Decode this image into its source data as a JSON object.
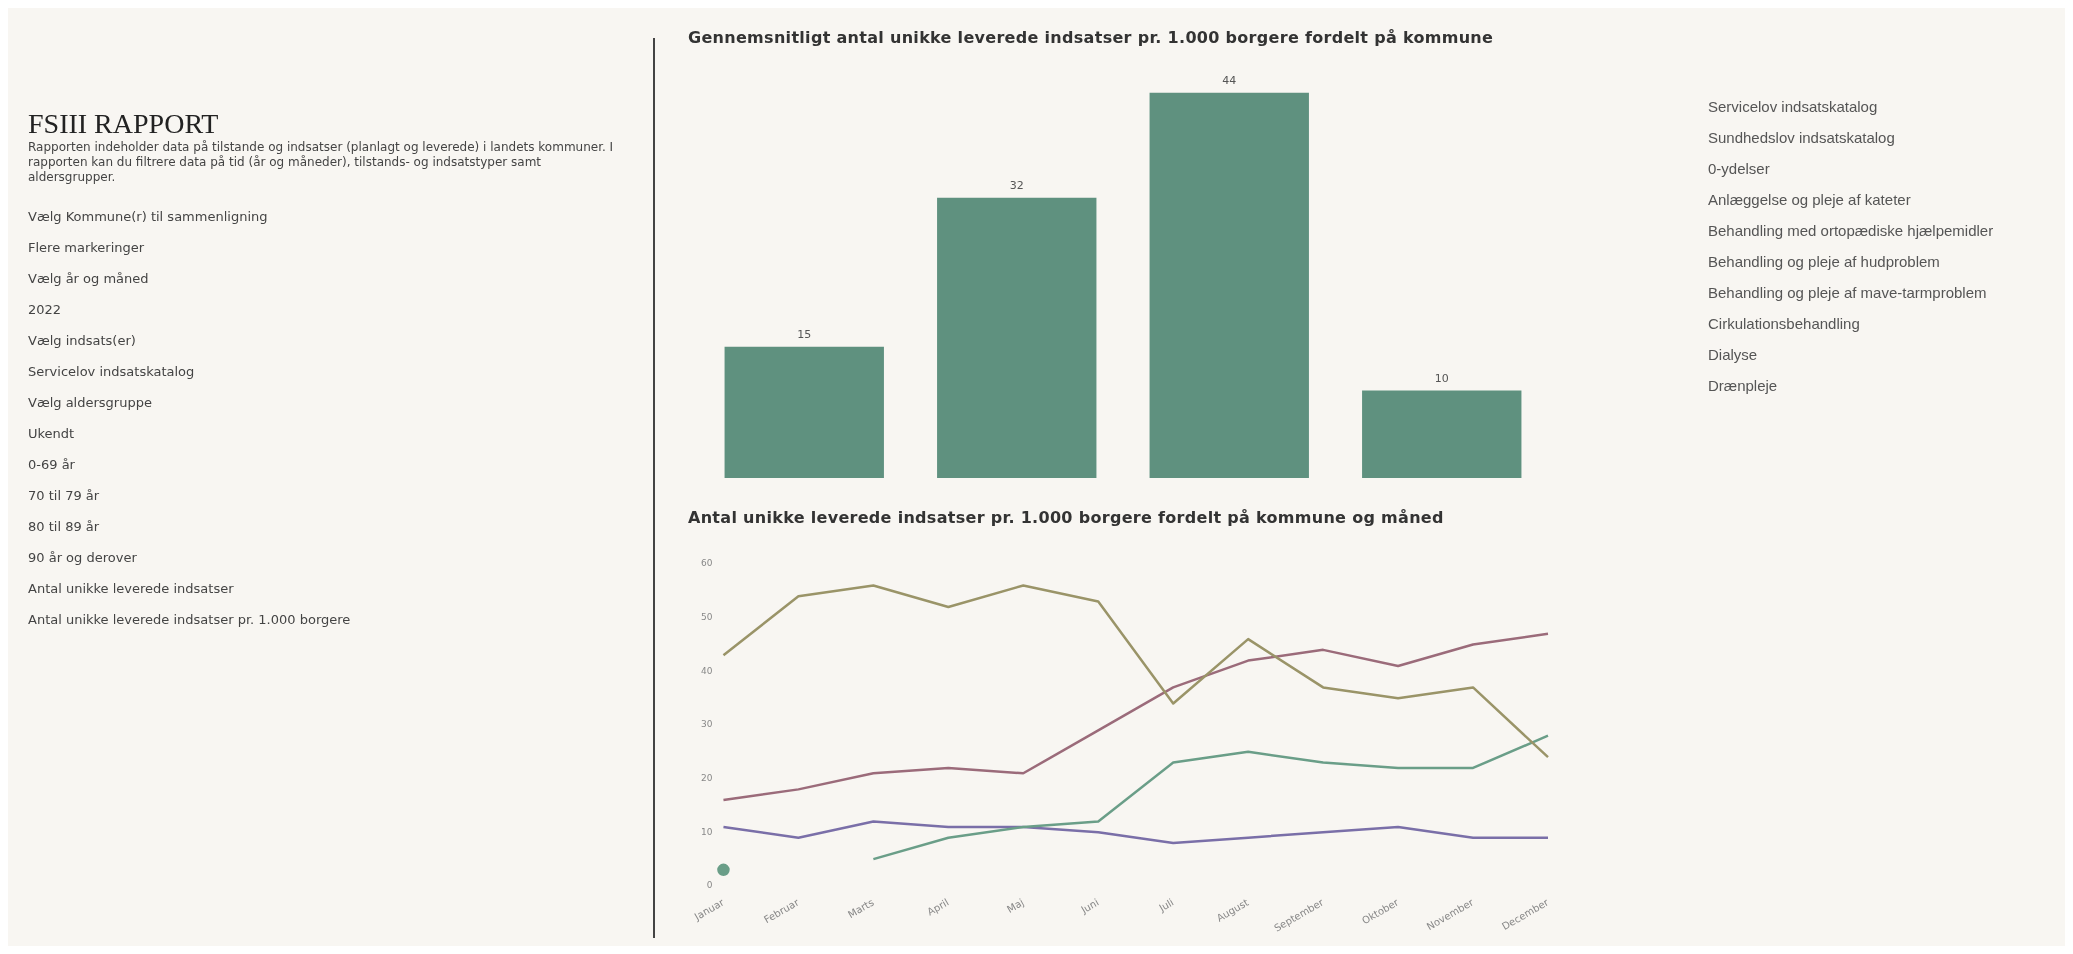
{
  "chart_data": [
    {
      "type": "other",
      "title": "FSIII RAPPORT",
      "subtitle": "Rapporten indeholder data på tilstande og indsatser (planlagt og leverede) i landets kommuner. I rapporten kan du filtrere data på tid (år og måneder), tilstands- og indsatstyper samt aldersgrupper.",
      "annotations": [
        "Vælg Kommune(r) til sammenligning",
        "Flere markeringer",
        "Vælg år og måned",
        "2022",
        "Vælg indsats(er)",
        "Servicelov indsatskatalog",
        "Vælg aldersgruppe",
        "Ukendt",
        "0-69 år",
        "70 til 79 år",
        "80 til 89 år",
        "90 år og derover",
        "Antal unikke leverede indsatser",
        "Antal unikke leverede indsatser pr. 1.000 borgere"
      ]
    },
    {
      "type": "bar",
      "title": "Gennemsnitligt antal unikke leverede indsatser pr. 1.000 borgere fordelt på kommune",
      "categories": [
        null,
        null,
        null,
        null
      ],
      "values": [
        15,
        32,
        44,
        10
      ],
      "color": "#5f917f",
      "data_labels": true,
      "tick_labels": false
    },
    {
      "type": "line",
      "title": "Antal unikke leverede indsatser pr. 1.000 borgere fordelt på kommune og måned",
      "categories": [
        "Januar",
        "Februar",
        "Marts",
        "April",
        "Maj",
        "Juni",
        "Juli",
        "August",
        "September",
        "Oktober",
        "November",
        "December"
      ],
      "ylim": [
        0,
        60
      ],
      "yticks": [
        0,
        10,
        20,
        30,
        40,
        50,
        60
      ],
      "series": [
        {
          "color": "#9a9468",
          "values": [
            43,
            54,
            56,
            52,
            56,
            53,
            34,
            46,
            37,
            35,
            37,
            24
          ]
        },
        {
          "color": "#9b6b7a",
          "values": [
            16,
            18,
            21,
            22,
            21,
            29,
            37,
            42,
            44,
            41,
            45,
            47
          ]
        },
        {
          "color": "#6a9e88",
          "values": [
            3,
            null,
            5,
            9,
            11,
            12,
            23,
            25,
            23,
            22,
            22,
            28
          ]
        },
        {
          "color": "#7a6fa8",
          "values": [
            11,
            9,
            12,
            11,
            11,
            10,
            8,
            9,
            10,
            11,
            9,
            9
          ]
        }
      ]
    },
    {
      "type": "other",
      "annotations": [
        "Servicelov indsatskatalog",
        "Sundhedslov indsatskatalog",
        "0-ydelser",
        "Anlæggelse og pleje af kateter",
        "Behandling med ortopædiske hjælpemidler",
        "Behandling og pleje af hudproblem",
        "Behandling og pleje af mave-tarmproblem",
        "Cirkulationsbehandling",
        "Dialyse",
        "Drænpleje"
      ]
    }
  ]
}
